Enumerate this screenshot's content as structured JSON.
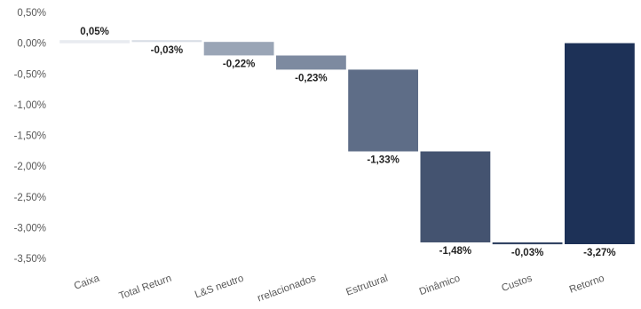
{
  "chart_data": {
    "type": "waterfall",
    "title": "",
    "xlabel": "",
    "ylabel": "",
    "ylim": [
      -3.5,
      0.5
    ],
    "yticks": [
      0.5,
      0.0,
      -0.5,
      -1.0,
      -1.5,
      -2.0,
      -2.5,
      -3.0,
      -3.5
    ],
    "ytick_labels": [
      "0,50%",
      "0,00%",
      "-0,50%",
      "-1,00%",
      "-1,50%",
      "-2,00%",
      "-2,50%",
      "-3,00%",
      "-3,50%"
    ],
    "grid": false,
    "legend": "none",
    "categories": [
      "Caixa",
      "Total Return",
      "L&S neutro",
      "Descorrelacionados",
      "Estrutural",
      "Dinâmico",
      "Custos",
      "Retorno"
    ],
    "category_labels_visible": [
      "Caixa",
      "Total Return",
      "L&S neutro",
      "rrelacionados",
      "Estrutural",
      "Dinâmico",
      "Custos",
      "Retorno"
    ],
    "values": [
      0.05,
      -0.03,
      -0.22,
      -0.23,
      -1.33,
      -1.48,
      -0.03,
      -3.27
    ],
    "data_labels": [
      "0,05%",
      "-0,03%",
      "-0,22%",
      "-0,23%",
      "-1,33%",
      "-1,48%",
      "-0,03%",
      "-3,27%"
    ],
    "total_index": 7,
    "colors": [
      "#e8ebf0",
      "#d8dde5",
      "#9aa5b6",
      "#7d8aa0",
      "#5e6d87",
      "#445370",
      "#324363",
      "#1d3157"
    ]
  }
}
